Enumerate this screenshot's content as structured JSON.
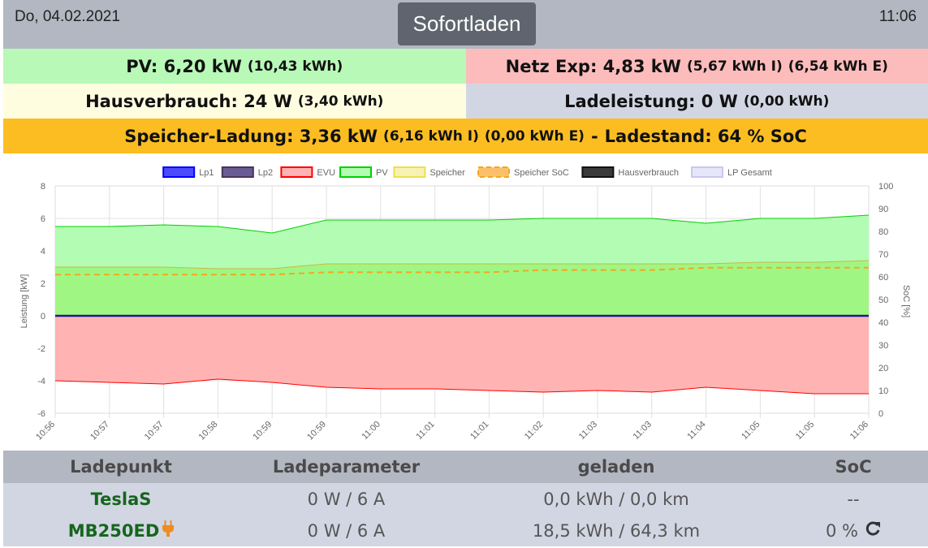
{
  "header": {
    "date": "Do, 04.02.2021",
    "mode_button": "Sofortladen",
    "time": "11:06"
  },
  "status": {
    "pv": {
      "label": "PV: 6,20 kW",
      "detail": "(10,43 kWh)"
    },
    "netz": {
      "label": "Netz Exp: 4,83 kW",
      "detail1": "(5,67 kWh I)",
      "detail2": "(6,54 kWh E)"
    },
    "haus": {
      "label": "Hausverbrauch: 24 W",
      "detail": "(3,40 kWh)"
    },
    "lade": {
      "label": "Ladeleistung: 0 W",
      "detail": "(0,00 kWh)"
    },
    "speicher": {
      "label": "Speicher-Ladung: 3,36 kW",
      "detail1": "(6,16 kWh I)",
      "detail2": "(0,00 kWh E)",
      "sep": "-",
      "soc": "Ladestand: 64 % SoC"
    }
  },
  "chart_data": {
    "type": "area",
    "xlabel": "",
    "ylabel": "Leistung [kW]",
    "y2label": "SoC [%]",
    "ylim": [
      -6,
      8
    ],
    "y2lim": [
      0,
      100
    ],
    "yticks": [
      "8",
      "6",
      "4",
      "2",
      "0",
      "-2",
      "-4",
      "-6"
    ],
    "y2ticks": [
      "100",
      "90",
      "80",
      "70",
      "60",
      "50",
      "40",
      "30",
      "20",
      "10",
      "0"
    ],
    "categories": [
      "10:56",
      "10:57",
      "10:57",
      "10:58",
      "10:59",
      "10:59",
      "11:00",
      "11:01",
      "11:01",
      "11:02",
      "11:03",
      "11:03",
      "11:04",
      "11:05",
      "11:05",
      "11:06"
    ],
    "legend_position": "top",
    "grid": true,
    "series": [
      {
        "name": "Lp1",
        "color": "#0000ff",
        "fill": "#4c4cff",
        "values": [
          0,
          0,
          0,
          0,
          0,
          0,
          0,
          0,
          0,
          0,
          0,
          0,
          0,
          0,
          0,
          0
        ]
      },
      {
        "name": "Lp2",
        "color": "#47345c",
        "fill": "#6b5b95",
        "values": [
          0,
          0,
          0,
          0,
          0,
          0,
          0,
          0,
          0,
          0,
          0,
          0,
          0,
          0,
          0,
          0
        ]
      },
      {
        "name": "EVU",
        "color": "#ff0000",
        "fill": "#ffb3b3",
        "values": [
          -4.0,
          -4.1,
          -4.2,
          -3.9,
          -4.1,
          -4.4,
          -4.5,
          -4.5,
          -4.6,
          -4.7,
          -4.6,
          -4.7,
          -4.4,
          -4.6,
          -4.8,
          -4.8
        ]
      },
      {
        "name": "PV",
        "color": "#00d000",
        "fill": "#b3fcb3",
        "values": [
          5.5,
          5.5,
          5.6,
          5.5,
          5.1,
          5.9,
          5.9,
          5.9,
          5.9,
          6.0,
          6.0,
          6.0,
          5.7,
          6.0,
          6.0,
          6.2
        ]
      },
      {
        "name": "Speicher",
        "color": "#ebe050",
        "fill": "#f7f2b4",
        "values": [
          3.0,
          3.0,
          3.0,
          2.9,
          2.9,
          3.2,
          3.2,
          3.2,
          3.2,
          3.2,
          3.2,
          3.2,
          3.2,
          3.3,
          3.3,
          3.4
        ]
      },
      {
        "name": "Speicher SoC",
        "color": "#f5a623",
        "fill": "#fcc06a",
        "dashed": true,
        "axis": "y2",
        "values": [
          61,
          61,
          61,
          61,
          61,
          62,
          62,
          62,
          62,
          63,
          63,
          63,
          64,
          64,
          64,
          64
        ]
      },
      {
        "name": "Hausverbrauch",
        "color": "#111111",
        "fill": "#3a3a3a",
        "values": [
          0.02,
          0.02,
          0.02,
          0.02,
          0.02,
          0.02,
          0.02,
          0.02,
          0.02,
          0.02,
          0.02,
          0.02,
          0.02,
          0.02,
          0.02,
          0.02
        ]
      },
      {
        "name": "LP Gesamt",
        "color": "#c8c8f0",
        "fill": "#e6e6fa",
        "values": [
          0,
          0,
          0,
          0,
          0,
          0,
          0,
          0,
          0,
          0,
          0,
          0,
          0,
          0,
          0,
          0
        ]
      }
    ]
  },
  "table": {
    "headers": [
      "Ladepunkt",
      "Ladeparameter",
      "geladen",
      "SoC"
    ],
    "rows": [
      {
        "name": "TeslaS",
        "params": "0 W / 6 A",
        "loaded": "0,0 kWh / 0,0 km",
        "soc": "--",
        "plugged": false
      },
      {
        "name": "MB250ED",
        "params": "0 W / 6 A",
        "loaded": "18,5 kWh / 64,3 km",
        "soc": "0 %",
        "plugged": true
      }
    ],
    "plug_icon": "plug-icon",
    "refresh_icon": "refresh-icon"
  }
}
